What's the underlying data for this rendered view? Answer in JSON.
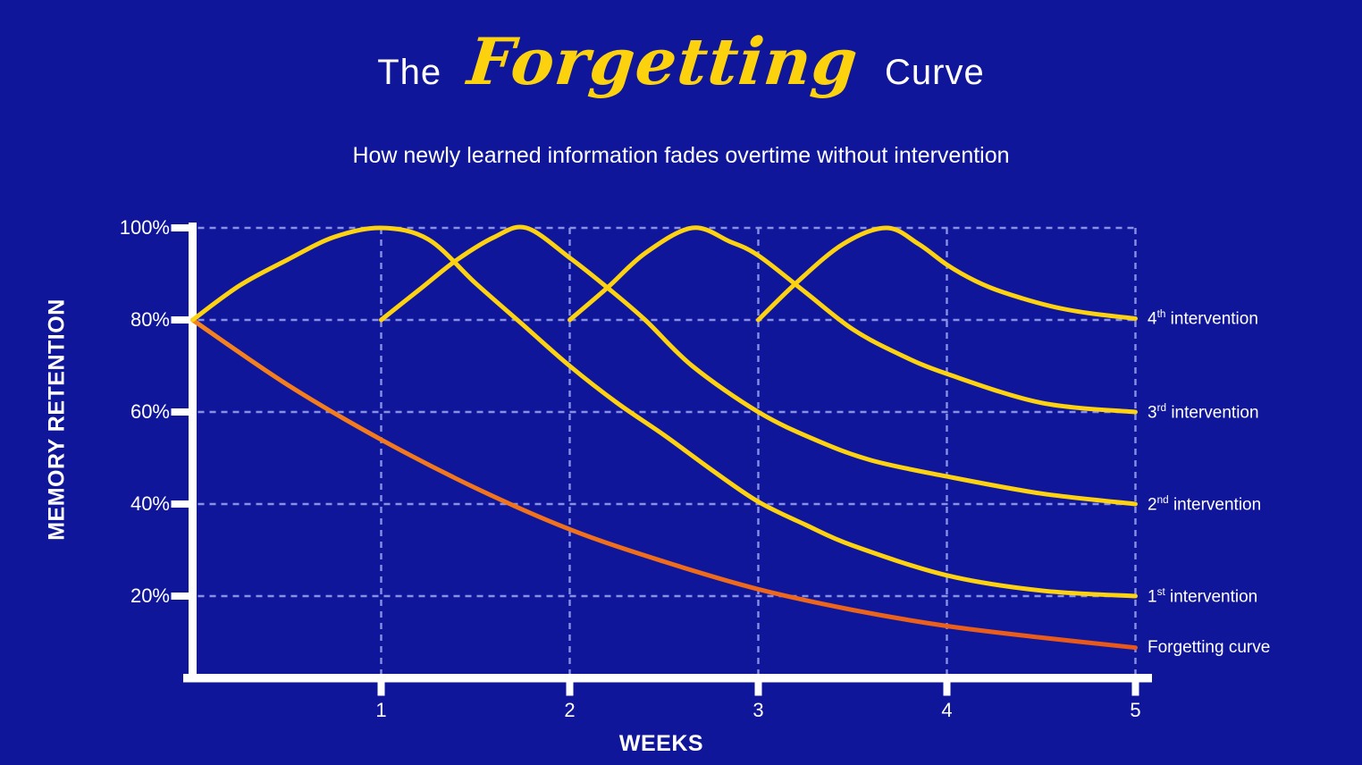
{
  "title": {
    "pre": "The",
    "highlight": "Forgetting",
    "post": "Curve"
  },
  "subtitle": "How newly learned information fades overtime without intervention",
  "chart_data": {
    "type": "line",
    "title": "The Forgetting Curve",
    "subtitle": "How newly learned information fades overtime without intervention",
    "grid": {
      "style": "dashed",
      "on": true
    },
    "legend_position": "right-of-line-ends",
    "x_axis": {
      "label": "WEEKS",
      "range": [
        0,
        5
      ],
      "ticks": [
        {
          "value": 1,
          "label": "1"
        },
        {
          "value": 2,
          "label": "2"
        },
        {
          "value": 3,
          "label": "3"
        },
        {
          "value": 4,
          "label": "4"
        },
        {
          "value": 5,
          "label": "5"
        }
      ]
    },
    "y_axis": {
      "label": "MEMORY RETENTION",
      "unit": "%",
      "range": [
        0,
        100
      ],
      "ticks": [
        {
          "value": 100,
          "label": "100%"
        },
        {
          "value": 80,
          "label": "80%"
        },
        {
          "value": 60,
          "label": "60%"
        },
        {
          "value": 40,
          "label": "40%"
        },
        {
          "value": 20,
          "label": "20%"
        }
      ]
    },
    "series": [
      {
        "id": "forgetting",
        "label": {
          "num": "Forgetting curve",
          "sup": "",
          "rest": ""
        },
        "color": "orange-gradient",
        "points": [
          [
            0,
            80
          ],
          [
            0.5,
            66
          ],
          [
            1,
            54
          ],
          [
            1.5,
            43.5
          ],
          [
            2,
            34.5
          ],
          [
            2.5,
            27.5
          ],
          [
            3,
            21.5
          ],
          [
            3.5,
            17
          ],
          [
            4,
            13.5
          ],
          [
            4.5,
            11
          ],
          [
            5,
            8.8
          ]
        ]
      },
      {
        "id": "first-intervention",
        "label": {
          "num": "1",
          "sup": "st",
          "rest": " intervention"
        },
        "color": "yellow",
        "points": [
          [
            0,
            80
          ],
          [
            0.25,
            87.5
          ],
          [
            0.5,
            93
          ],
          [
            0.75,
            98
          ],
          [
            1,
            100
          ],
          [
            1.25,
            97.5
          ],
          [
            1.5,
            88
          ],
          [
            1.75,
            79
          ],
          [
            2,
            70
          ],
          [
            2.25,
            62
          ],
          [
            2.5,
            55
          ],
          [
            2.75,
            47.5
          ],
          [
            3,
            40.5
          ],
          [
            3.25,
            35.5
          ],
          [
            3.5,
            31
          ],
          [
            4,
            24.5
          ],
          [
            4.5,
            21.2
          ],
          [
            5,
            20
          ]
        ]
      },
      {
        "id": "second-intervention",
        "label": {
          "num": "2",
          "sup": "nd",
          "rest": " intervention"
        },
        "color": "yellow",
        "points": [
          [
            1,
            80
          ],
          [
            1.2,
            86.5
          ],
          [
            1.4,
            93
          ],
          [
            1.6,
            98
          ],
          [
            1.77,
            100
          ],
          [
            2,
            93.5
          ],
          [
            2.2,
            87
          ],
          [
            2.4,
            80
          ],
          [
            2.65,
            70
          ],
          [
            3,
            60
          ],
          [
            3.3,
            54
          ],
          [
            3.6,
            49.5
          ],
          [
            4,
            46
          ],
          [
            4.5,
            42.3
          ],
          [
            5,
            40
          ]
        ]
      },
      {
        "id": "third-intervention",
        "label": {
          "num": "3",
          "sup": "rd",
          "rest": " intervention"
        },
        "color": "yellow",
        "points": [
          [
            2,
            80
          ],
          [
            2.2,
            87
          ],
          [
            2.4,
            94.5
          ],
          [
            2.65,
            100
          ],
          [
            2.85,
            97
          ],
          [
            3,
            94
          ],
          [
            3.25,
            86
          ],
          [
            3.5,
            78
          ],
          [
            3.75,
            72.5
          ],
          [
            4,
            68.3
          ],
          [
            4.5,
            62
          ],
          [
            5,
            60
          ]
        ]
      },
      {
        "id": "fourth-intervention",
        "label": {
          "num": "4",
          "sup": "th",
          "rest": " intervention"
        },
        "color": "yellow",
        "points": [
          [
            3,
            80
          ],
          [
            3.2,
            88
          ],
          [
            3.45,
            96.5
          ],
          [
            3.68,
            100
          ],
          [
            3.85,
            96.5
          ],
          [
            4,
            92
          ],
          [
            4.15,
            88.5
          ],
          [
            4.3,
            86
          ],
          [
            4.55,
            83
          ],
          [
            4.75,
            81.5
          ],
          [
            5,
            80.3
          ]
        ]
      }
    ],
    "colors": {
      "background": "#10169A",
      "grid": "#8890E6",
      "axis": "#FFFFFF",
      "text": "#FFFFFF",
      "yellow": "#FCD211",
      "orange_start": "#F5821E",
      "orange_end": "#E8571A",
      "title_accent": "#FCD20F"
    }
  }
}
